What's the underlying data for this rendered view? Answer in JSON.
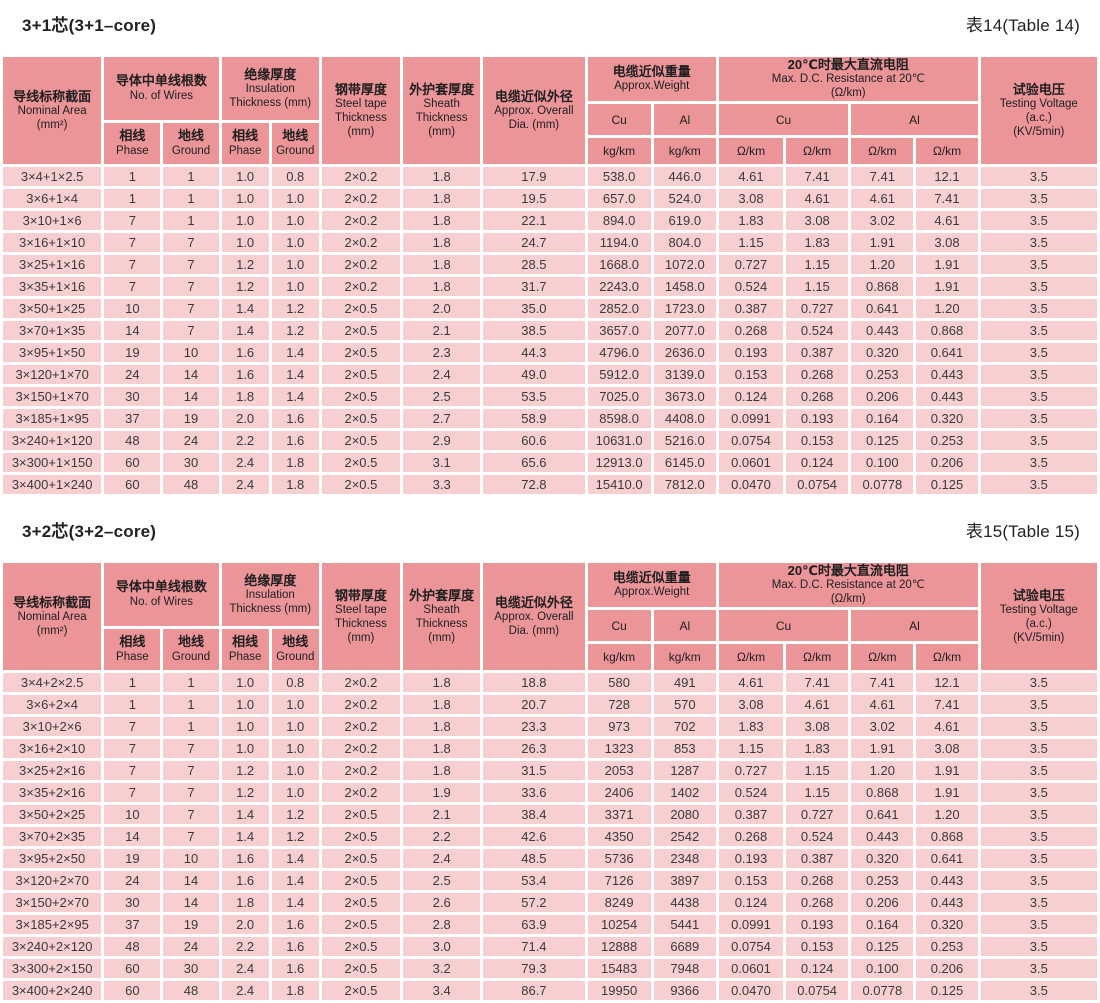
{
  "colors": {
    "page_bg": "#ffffff",
    "header_bg": "#ec9599",
    "cell_bg": "#f8cfd0",
    "text": "#3a3a3a",
    "title_text": "#222222"
  },
  "header": {
    "nominal_zh": "导线标称截面",
    "nominal_en": "Nominal Area",
    "nominal_unit": "(mm²)",
    "wires_zh": "导体中单线根数",
    "wires_en": "No. of Wires",
    "phase_zh": "相线",
    "phase_en": "Phase",
    "ground_zh": "地线",
    "ground_en": "Ground",
    "ins_zh": "绝缘厚度",
    "ins_en": "Insulation",
    "ins_unit": "Thickness (mm)",
    "steel_zh": "钢带厚度",
    "steel_en1": "Steel tape",
    "steel_en2": "Thickness",
    "steel_unit": "(mm)",
    "sheath_zh": "外护套厚度",
    "sheath_en1": "Sheath",
    "sheath_en2": "Thickness",
    "sheath_unit": "(mm)",
    "dia_zh": "电缆近似外径",
    "dia_en": "Approx. Overall",
    "dia_unit": "Dia. (mm)",
    "weight_zh": "电缆近似重量",
    "weight_en": "Approx.Weight",
    "res_zh": "20℃时最大直流电阻",
    "res_en": "Max. D.C. Resistance at 20℃",
    "res_unit": "(Ω/km)",
    "cu": "Cu",
    "al": "Al",
    "kg_km": "kg/km",
    "ohm_km": "Ω/km",
    "test_zh": "试验电压",
    "test_en": "Testing Voltage",
    "test_ac": "(a.c.)",
    "test_unit": "(KV/5min)"
  },
  "tables": [
    {
      "title": "3+1芯(3+1–core)",
      "label": "表14(Table 14)",
      "rows": [
        [
          "3×4+1×2.5",
          "1",
          "1",
          "1.0",
          "0.8",
          "2×0.2",
          "1.8",
          "17.9",
          "538.0",
          "446.0",
          "4.61",
          "7.41",
          "7.41",
          "12.1",
          "3.5"
        ],
        [
          "3×6+1×4",
          "1",
          "1",
          "1.0",
          "1.0",
          "2×0.2",
          "1.8",
          "19.5",
          "657.0",
          "524.0",
          "3.08",
          "4.61",
          "4.61",
          "7.41",
          "3.5"
        ],
        [
          "3×10+1×6",
          "7",
          "1",
          "1.0",
          "1.0",
          "2×0.2",
          "1.8",
          "22.1",
          "894.0",
          "619.0",
          "1.83",
          "3.08",
          "3.02",
          "4.61",
          "3.5"
        ],
        [
          "3×16+1×10",
          "7",
          "7",
          "1.0",
          "1.0",
          "2×0.2",
          "1.8",
          "24.7",
          "1194.0",
          "804.0",
          "1.15",
          "1.83",
          "1.91",
          "3.08",
          "3.5"
        ],
        [
          "3×25+1×16",
          "7",
          "7",
          "1.2",
          "1.0",
          "2×0.2",
          "1.8",
          "28.5",
          "1668.0",
          "1072.0",
          "0.727",
          "1.15",
          "1.20",
          "1.91",
          "3.5"
        ],
        [
          "3×35+1×16",
          "7",
          "7",
          "1.2",
          "1.0",
          "2×0.2",
          "1.8",
          "31.7",
          "2243.0",
          "1458.0",
          "0.524",
          "1.15",
          "0.868",
          "1.91",
          "3.5"
        ],
        [
          "3×50+1×25",
          "10",
          "7",
          "1.4",
          "1.2",
          "2×0.5",
          "2.0",
          "35.0",
          "2852.0",
          "1723.0",
          "0.387",
          "0.727",
          "0.641",
          "1.20",
          "3.5"
        ],
        [
          "3×70+1×35",
          "14",
          "7",
          "1.4",
          "1.2",
          "2×0.5",
          "2.1",
          "38.5",
          "3657.0",
          "2077.0",
          "0.268",
          "0.524",
          "0.443",
          "0.868",
          "3.5"
        ],
        [
          "3×95+1×50",
          "19",
          "10",
          "1.6",
          "1.4",
          "2×0.5",
          "2.3",
          "44.3",
          "4796.0",
          "2636.0",
          "0.193",
          "0.387",
          "0.320",
          "0.641",
          "3.5"
        ],
        [
          "3×120+1×70",
          "24",
          "14",
          "1.6",
          "1.4",
          "2×0.5",
          "2.4",
          "49.0",
          "5912.0",
          "3139.0",
          "0.153",
          "0.268",
          "0.253",
          "0.443",
          "3.5"
        ],
        [
          "3×150+1×70",
          "30",
          "14",
          "1.8",
          "1.4",
          "2×0.5",
          "2.5",
          "53.5",
          "7025.0",
          "3673.0",
          "0.124",
          "0.268",
          "0.206",
          "0.443",
          "3.5"
        ],
        [
          "3×185+1×95",
          "37",
          "19",
          "2.0",
          "1.6",
          "2×0.5",
          "2.7",
          "58.9",
          "8598.0",
          "4408.0",
          "0.0991",
          "0.193",
          "0.164",
          "0.320",
          "3.5"
        ],
        [
          "3×240+1×120",
          "48",
          "24",
          "2.2",
          "1.6",
          "2×0.5",
          "2.9",
          "60.6",
          "10631.0",
          "5216.0",
          "0.0754",
          "0.153",
          "0.125",
          "0.253",
          "3.5"
        ],
        [
          "3×300+1×150",
          "60",
          "30",
          "2.4",
          "1.8",
          "2×0.5",
          "3.1",
          "65.6",
          "12913.0",
          "6145.0",
          "0.0601",
          "0.124",
          "0.100",
          "0.206",
          "3.5"
        ],
        [
          "3×400+1×240",
          "60",
          "48",
          "2.4",
          "1.8",
          "2×0.5",
          "3.3",
          "72.8",
          "15410.0",
          "7812.0",
          "0.0470",
          "0.0754",
          "0.0778",
          "0.125",
          "3.5"
        ]
      ]
    },
    {
      "title": "3+2芯(3+2–core)",
      "label": "表15(Table 15)",
      "rows": [
        [
          "3×4+2×2.5",
          "1",
          "1",
          "1.0",
          "0.8",
          "2×0.2",
          "1.8",
          "18.8",
          "580",
          "491",
          "4.61",
          "7.41",
          "7.41",
          "12.1",
          "3.5"
        ],
        [
          "3×6+2×4",
          "1",
          "1",
          "1.0",
          "1.0",
          "2×0.2",
          "1.8",
          "20.7",
          "728",
          "570",
          "3.08",
          "4.61",
          "4.61",
          "7.41",
          "3.5"
        ],
        [
          "3×10+2×6",
          "7",
          "1",
          "1.0",
          "1.0",
          "2×0.2",
          "1.8",
          "23.3",
          "973",
          "702",
          "1.83",
          "3.08",
          "3.02",
          "4.61",
          "3.5"
        ],
        [
          "3×16+2×10",
          "7",
          "7",
          "1.0",
          "1.0",
          "2×0.2",
          "1.8",
          "26.3",
          "1323",
          "853",
          "1.15",
          "1.83",
          "1.91",
          "3.08",
          "3.5"
        ],
        [
          "3×25+2×16",
          "7",
          "7",
          "1.2",
          "1.0",
          "2×0.2",
          "1.8",
          "31.5",
          "2053",
          "1287",
          "0.727",
          "1.15",
          "1.20",
          "1.91",
          "3.5"
        ],
        [
          "3×35+2×16",
          "7",
          "7",
          "1.2",
          "1.0",
          "2×0.2",
          "1.9",
          "33.6",
          "2406",
          "1402",
          "0.524",
          "1.15",
          "0.868",
          "1.91",
          "3.5"
        ],
        [
          "3×50+2×25",
          "10",
          "7",
          "1.4",
          "1.2",
          "2×0.5",
          "2.1",
          "38.4",
          "3371",
          "2080",
          "0.387",
          "0.727",
          "0.641",
          "1.20",
          "3.5"
        ],
        [
          "3×70+2×35",
          "14",
          "7",
          "1.4",
          "1.2",
          "2×0.5",
          "2.2",
          "42.6",
          "4350",
          "2542",
          "0.268",
          "0.524",
          "0.443",
          "0.868",
          "3.5"
        ],
        [
          "3×95+2×50",
          "19",
          "10",
          "1.6",
          "1.4",
          "2×0.5",
          "2.4",
          "48.5",
          "5736",
          "2348",
          "0.193",
          "0.387",
          "0.320",
          "0.641",
          "3.5"
        ],
        [
          "3×120+2×70",
          "24",
          "14",
          "1.6",
          "1.4",
          "2×0.5",
          "2.5",
          "53.4",
          "7126",
          "3897",
          "0.153",
          "0.268",
          "0.253",
          "0.443",
          "3.5"
        ],
        [
          "3×150+2×70",
          "30",
          "14",
          "1.8",
          "1.4",
          "2×0.5",
          "2.6",
          "57.2",
          "8249",
          "4438",
          "0.124",
          "0.268",
          "0.206",
          "0.443",
          "3.5"
        ],
        [
          "3×185+2×95",
          "37",
          "19",
          "2.0",
          "1.6",
          "2×0.5",
          "2.8",
          "63.9",
          "10254",
          "5441",
          "0.0991",
          "0.193",
          "0.164",
          "0.320",
          "3.5"
        ],
        [
          "3×240+2×120",
          "48",
          "24",
          "2.2",
          "1.6",
          "2×0.5",
          "3.0",
          "71.4",
          "12888",
          "6689",
          "0.0754",
          "0.153",
          "0.125",
          "0.253",
          "3.5"
        ],
        [
          "3×300+2×150",
          "60",
          "30",
          "2.4",
          "1.6",
          "2×0.5",
          "3.2",
          "79.3",
          "15483",
          "7948",
          "0.0601",
          "0.124",
          "0.100",
          "0.206",
          "3.5"
        ],
        [
          "3×400+2×240",
          "60",
          "48",
          "2.4",
          "1.8",
          "2×0.5",
          "3.4",
          "86.7",
          "19950",
          "9366",
          "0.0470",
          "0.0754",
          "0.0778",
          "0.125",
          "3.5"
        ]
      ]
    }
  ]
}
